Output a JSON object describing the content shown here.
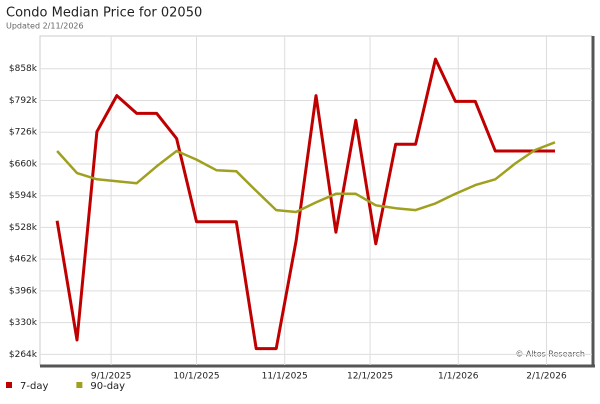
{
  "chart_data": {
    "type": "line",
    "title": "Condo Median Price for 02050",
    "subtitle": "Updated 2/11/2026",
    "annotation": "© Altos Research",
    "x": [
      "2025-08-13",
      "2025-08-20",
      "2025-08-27",
      "2025-09-03",
      "2025-09-10",
      "2025-09-17",
      "2025-09-24",
      "2025-10-01",
      "2025-10-08",
      "2025-10-15",
      "2025-10-22",
      "2025-10-29",
      "2025-11-05",
      "2025-11-12",
      "2025-11-19",
      "2025-11-26",
      "2025-12-03",
      "2025-12-10",
      "2025-12-17",
      "2025-12-24",
      "2025-12-31",
      "2026-01-07",
      "2026-01-14",
      "2026-01-21",
      "2026-01-28",
      "2026-02-04"
    ],
    "series": [
      {
        "name": "7-day",
        "color": "#c00000",
        "values": [
          542000,
          294000,
          727000,
          802000,
          765000,
          765000,
          713000,
          540000,
          540000,
          540000,
          276000,
          276000,
          500000,
          802000,
          518000,
          751000,
          494000,
          701000,
          701000,
          878000,
          790000,
          790000,
          687000,
          687000,
          687000,
          687000
        ]
      },
      {
        "name": "90-day",
        "color": "#a0a020",
        "values": [
          687000,
          641000,
          628000,
          624000,
          620000,
          655000,
          687000,
          669000,
          647000,
          645000,
          604000,
          564000,
          560000,
          580000,
          598000,
          598000,
          574000,
          568000,
          564000,
          578000,
          598000,
          616000,
          628000,
          661000,
          689000,
          705000
        ]
      }
    ],
    "xlim": [
      "2025-08-07",
      "2026-02-17"
    ],
    "xticks": [
      {
        "value": "2025-09-01",
        "label": "9/1/2025"
      },
      {
        "value": "2025-10-01",
        "label": "10/1/2025"
      },
      {
        "value": "2025-11-01",
        "label": "11/1/2025"
      },
      {
        "value": "2025-12-01",
        "label": "12/1/2025"
      },
      {
        "value": "2026-01-01",
        "label": "1/1/2026"
      },
      {
        "value": "2026-02-01",
        "label": "2/1/2026"
      }
    ],
    "ylim": [
      242000,
      926000
    ],
    "yticks": [
      {
        "value": 264000,
        "label": "$264k"
      },
      {
        "value": 330000,
        "label": "$330k"
      },
      {
        "value": 396000,
        "label": "$396k"
      },
      {
        "value": 462000,
        "label": "$462k"
      },
      {
        "value": 528000,
        "label": "$528k"
      },
      {
        "value": 594000,
        "label": "$594k"
      },
      {
        "value": 660000,
        "label": "$660k"
      },
      {
        "value": 726000,
        "label": "$726k"
      },
      {
        "value": 792000,
        "label": "$792k"
      },
      {
        "value": 858000,
        "label": "$858k"
      }
    ],
    "grid": true
  }
}
